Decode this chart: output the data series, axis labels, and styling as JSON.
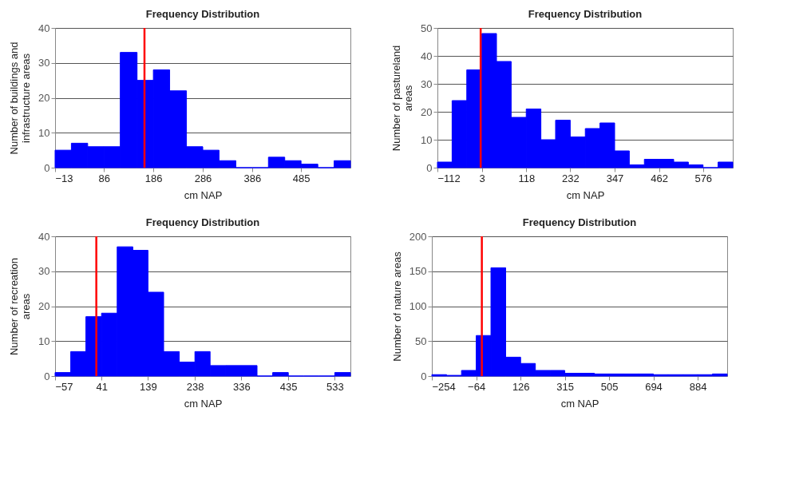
{
  "chart_data": [
    {
      "type": "histogram",
      "title": "Frequency Distribution",
      "xlabel": "cm NAP",
      "ylabel": "Number of buildings and infrastructure areas",
      "color": "#0000ff",
      "grid": "y",
      "bins": [
        -13,
        20,
        53,
        86,
        119,
        153,
        186,
        219,
        253,
        286,
        319,
        353,
        386,
        419,
        452,
        485,
        519,
        552,
        585
      ],
      "values": [
        5,
        7,
        6,
        6,
        33,
        25,
        28,
        22,
        6,
        5,
        2,
        0,
        0,
        3,
        2,
        1,
        0,
        2
      ],
      "xlim": [
        -13,
        585
      ],
      "xticks": [
        -13,
        86,
        186,
        286,
        386,
        485
      ],
      "ylim": [
        0,
        40
      ],
      "yticks": [
        0,
        10,
        20,
        30,
        40
      ],
      "ref_lines": [
        {
          "axis": "x",
          "value": 168,
          "color": "#ff0000"
        }
      ]
    },
    {
      "type": "histogram",
      "title": "Frequency Distribution",
      "xlabel": "cm NAP",
      "ylabel": "Number of pastureland areas",
      "color": "#0000ff",
      "grid": "y",
      "bins": [
        -112,
        -74,
        -36,
        3,
        41,
        79,
        118,
        156,
        194,
        232,
        271,
        309,
        347,
        385,
        424,
        462,
        500,
        538,
        576,
        615,
        653
      ],
      "values": [
        2,
        24,
        35,
        48,
        38,
        18,
        21,
        10,
        17,
        11,
        14,
        16,
        6,
        1,
        3,
        3,
        2,
        1,
        0,
        2
      ],
      "xlim": [
        -112,
        653
      ],
      "xticks": [
        -112,
        3,
        118,
        232,
        347,
        462,
        576
      ],
      "ylim": [
        0,
        50
      ],
      "yticks": [
        0,
        10,
        20,
        30,
        40,
        50
      ],
      "ref_lines": [
        {
          "axis": "x",
          "value": 0,
          "color": "#ff0000"
        }
      ]
    },
    {
      "type": "histogram",
      "title": "Frequency Distribution",
      "xlabel": "cm NAP",
      "ylabel": "Number of recreation areas",
      "color": "#0000ff",
      "grid": "y",
      "bins": [
        -57,
        -24,
        8,
        41,
        74,
        107,
        139,
        172,
        205,
        238,
        270,
        303,
        336,
        369,
        402,
        435,
        467,
        500,
        533,
        566
      ],
      "values": [
        1,
        7,
        17,
        18,
        37,
        36,
        24,
        7,
        4,
        7,
        3,
        3,
        3,
        0,
        1,
        0,
        0,
        0,
        1
      ],
      "xlim": [
        -57,
        566
      ],
      "xticks": [
        -57,
        41,
        139,
        238,
        336,
        435,
        533
      ],
      "ylim": [
        0,
        40
      ],
      "yticks": [
        0,
        10,
        20,
        30,
        40
      ],
      "ref_lines": [
        {
          "axis": "x",
          "value": 30,
          "color": "#ff0000"
        }
      ]
    },
    {
      "type": "histogram",
      "title": "Frequency Distribution",
      "xlabel": "cm NAP",
      "ylabel": "Number of nature areas",
      "color": "#0000ff",
      "grid": "y",
      "bins": [
        -254,
        -191,
        -127,
        -64,
        -1,
        62,
        126,
        189,
        252,
        315,
        378,
        442,
        505,
        568,
        631,
        694,
        758,
        821,
        884,
        947,
        1010
      ],
      "values": [
        2,
        1,
        8,
        58,
        155,
        27,
        18,
        8,
        8,
        4,
        4,
        3,
        3,
        3,
        3,
        2,
        2,
        2,
        2,
        3
      ],
      "xlim": [
        -254,
        1010
      ],
      "xticks": [
        -254,
        -64,
        126,
        315,
        505,
        694,
        884
      ],
      "ylim": [
        0,
        200
      ],
      "yticks": [
        0,
        50,
        100,
        150,
        200
      ],
      "ref_lines": [
        {
          "axis": "x",
          "value": -40,
          "color": "#ff0000"
        }
      ]
    }
  ]
}
